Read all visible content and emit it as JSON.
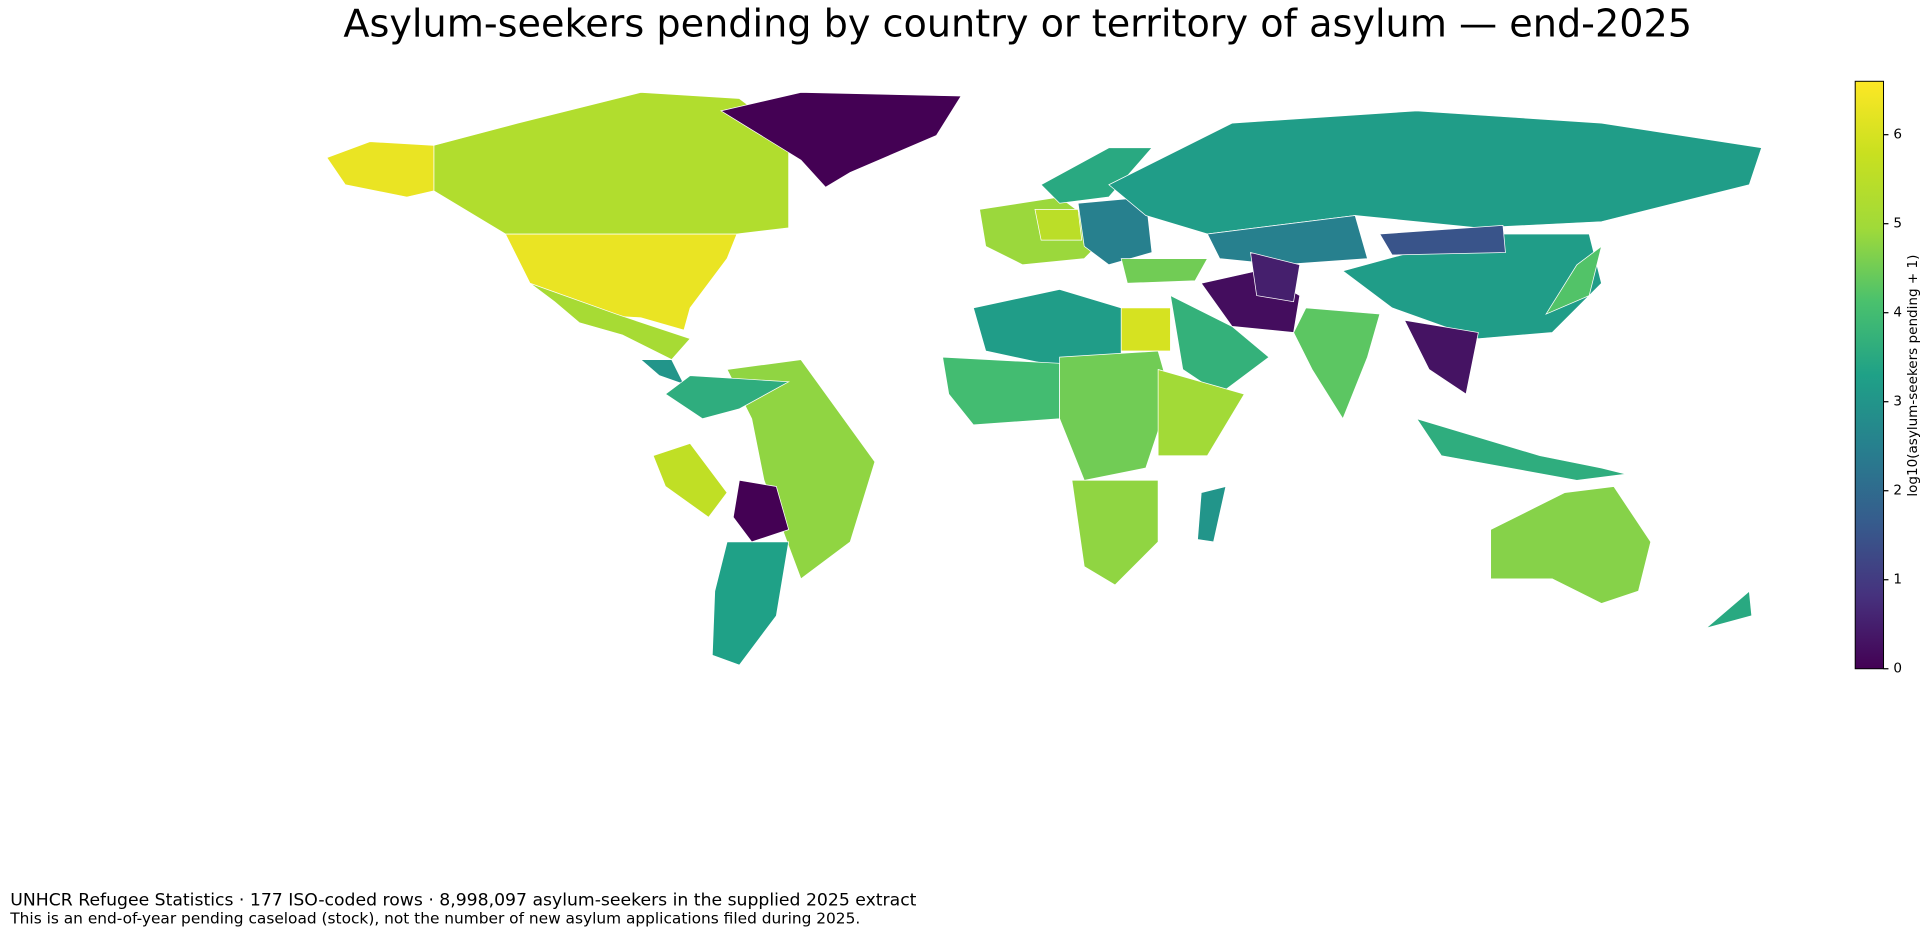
{
  "chart_data": {
    "type": "choropleth",
    "title": "Asylum-seekers pending by country or territory of asylum — end-2025",
    "colorbar_label": "log10(asylum-seekers pending + 1)",
    "clim": [
      0,
      6.6
    ],
    "ticks": [
      0,
      1,
      2,
      3,
      4,
      5,
      6
    ],
    "colormap": "viridis",
    "values": [
      6.3,
      6.3,
      5.3,
      0,
      5.1,
      3,
      4.8,
      3.6,
      5.6,
      0,
      3.3,
      4.9,
      5.5,
      3.5,
      2.5,
      3.2,
      2.5,
      3.2,
      1.5,
      0.2,
      4.5,
      3.7,
      6,
      3.2,
      4,
      4.5,
      5,
      4.8,
      3,
      4.3,
      0.5,
      0.3,
      4.2,
      3.6,
      4.7,
      3.5
    ],
    "footnotes": [
      "UNHCR Refugee Statistics · 177 ISO-coded rows · 8,998,097 asylum-seekers in the supplied 2025 extract",
      "This is an end-of-year pending caseload (stock), not the number of new asylum applications filed during 2025."
    ]
  }
}
